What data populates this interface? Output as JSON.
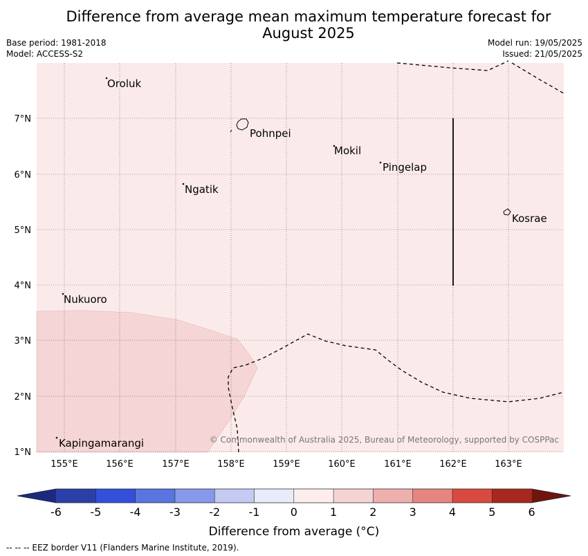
{
  "title_line1": "Difference from average mean maximum temperature forecast for",
  "title_line2": "August 2025",
  "base_period": "Base period: 1981-2018",
  "model": "Model: ACCESS-S2",
  "model_run": "Model run: 19/05/2025",
  "issued": "Issued: 21/05/2025",
  "lon_labels": [
    "155°E",
    "156°E",
    "157°E",
    "158°E",
    "159°E",
    "160°E",
    "161°E",
    "162°E",
    "163°E"
  ],
  "lat_labels": [
    "1°N",
    "2°N",
    "3°N",
    "4°N",
    "5°N",
    "6°N",
    "7°N"
  ],
  "places": [
    "Oroluk",
    "Pohnpei",
    "Mokil",
    "Pingelap",
    "Ngatik",
    "Kosrae",
    "Nukuoro",
    "Kapingamarangi"
  ],
  "copyright": "© Commonwealth of Australia 2025, Bureau of Meteorology, supported by COSPPac",
  "colorbar_ticks": [
    "-6",
    "-5",
    "-4",
    "-3",
    "-2",
    "-1",
    "0",
    "1",
    "2",
    "3",
    "4",
    "5",
    "6"
  ],
  "colorbar_label": "Difference from average (°C)",
  "colorbar_colors": [
    "#2a3fa8",
    "#3350d8",
    "#5a74e0",
    "#8699ea",
    "#c3cbf3",
    "#e9ebfb",
    "#fdeeed",
    "#f6d3d3",
    "#eeb0ae",
    "#e6857f",
    "#d84a3f",
    "#a8271f"
  ],
  "footer": "--  --  -- EEZ border V11 (Flanders Marine Institute, 2019).",
  "fill_colors": {
    "background": "#fbeaea",
    "warm_zone": "#f5d5d5"
  }
}
